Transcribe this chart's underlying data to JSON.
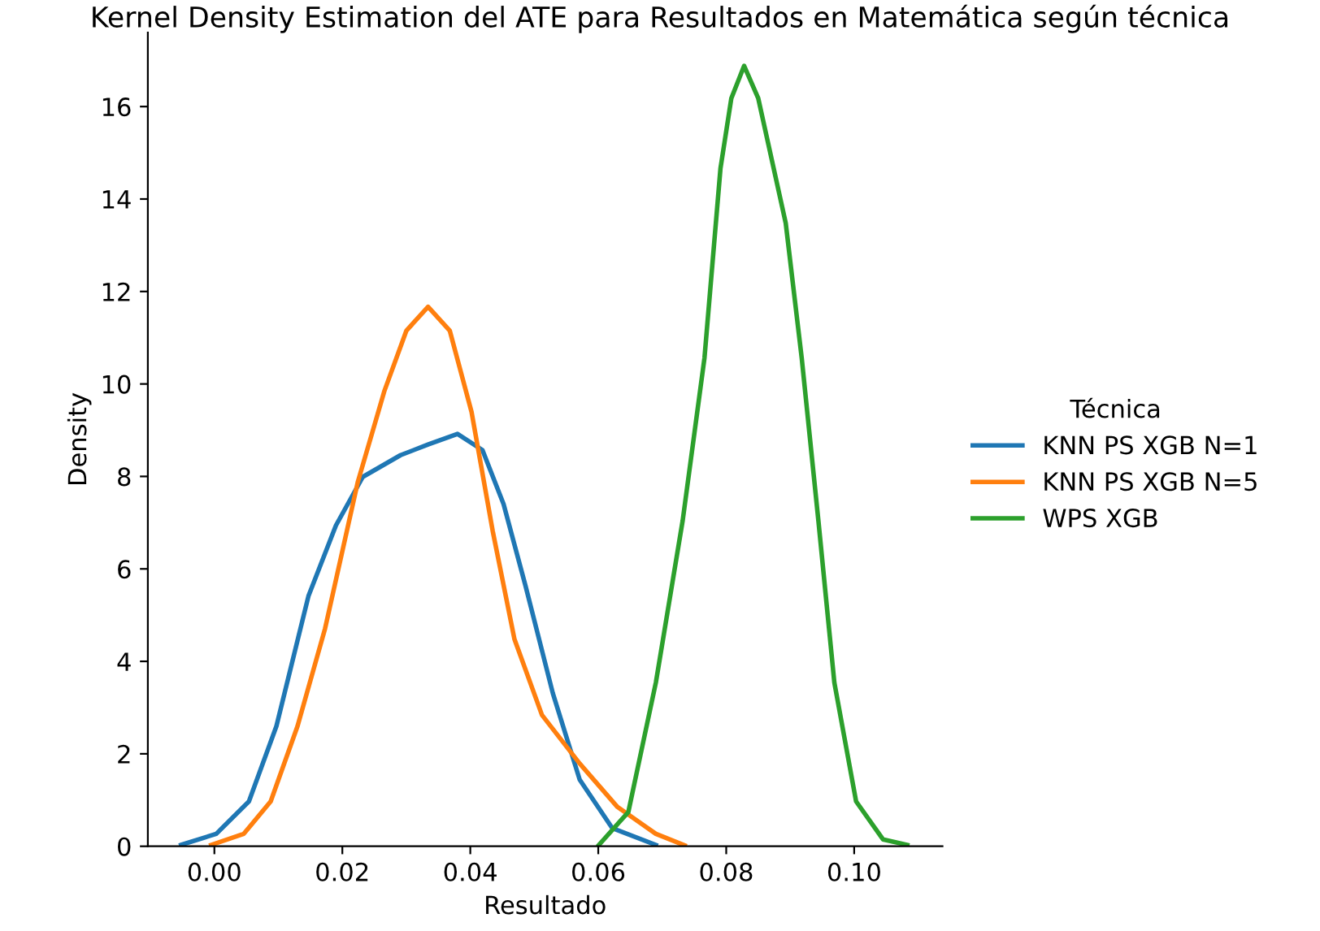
{
  "chart_data": {
    "type": "line",
    "title": "Kernel Density Estimation del ATE para Resultados en Matemática según técnica",
    "xlabel": "Resultado",
    "ylabel": "Density",
    "legend_title": "Técnica",
    "legend": "right",
    "grid": false,
    "marker": "none",
    "line_style": "solid",
    "xlim": [
      -0.0104,
      0.1138
    ],
    "xticks": [
      {
        "value": 0,
        "label": "0.00"
      },
      {
        "value": 0.02,
        "label": "0.02"
      },
      {
        "value": 0.04,
        "label": "0.04"
      },
      {
        "value": 0.06,
        "label": "0.06"
      },
      {
        "value": 0.08,
        "label": "0.08"
      },
      {
        "value": 0.1,
        "label": "0.10"
      }
    ],
    "ylim": [
      0,
      17.6
    ],
    "yticks": [
      0,
      2,
      4,
      6,
      8,
      10,
      12,
      14,
      16
    ],
    "series": [
      {
        "name": "KNN PS XGB N=1",
        "color": "#1f77b4",
        "x": [
          -0.0052,
          0.0003,
          0.0054,
          0.0097,
          0.0147,
          0.019,
          0.0232,
          0.0291,
          0.0334,
          0.038,
          0.0419,
          0.0452,
          0.0486,
          0.0529,
          0.0571,
          0.0622,
          0.069
        ],
        "values": [
          0.03,
          0.27,
          0.97,
          2.6,
          5.41,
          6.94,
          7.99,
          8.46,
          8.69,
          8.92,
          8.57,
          7.4,
          5.65,
          3.31,
          1.44,
          0.39,
          0.03
        ]
      },
      {
        "name": "KNN PS XGB N=5",
        "color": "#ff7f0e",
        "x": [
          -0.0005,
          0.0046,
          0.0088,
          0.013,
          0.0173,
          0.0224,
          0.0266,
          0.03,
          0.0334,
          0.0368,
          0.0402,
          0.0435,
          0.0469,
          0.0512,
          0.0571,
          0.063,
          0.069,
          0.0735
        ],
        "values": [
          0.03,
          0.27,
          0.97,
          2.6,
          4.71,
          7.87,
          9.86,
          11.15,
          11.67,
          11.15,
          9.39,
          6.82,
          4.48,
          2.84,
          1.79,
          0.85,
          0.27,
          0.02
        ]
      },
      {
        "name": "WPS XGB",
        "color": "#2ca02c",
        "x": [
          0.0601,
          0.0647,
          0.069,
          0.0732,
          0.0766,
          0.0791,
          0.0808,
          0.0828,
          0.085,
          0.0893,
          0.0918,
          0.0944,
          0.0969,
          0.1003,
          0.1045,
          0.1083
        ],
        "values": [
          0.03,
          0.74,
          3.54,
          7.05,
          10.56,
          14.66,
          16.18,
          16.88,
          16.18,
          13.48,
          10.56,
          7.05,
          3.54,
          0.97,
          0.15,
          0.03
        ]
      }
    ]
  }
}
